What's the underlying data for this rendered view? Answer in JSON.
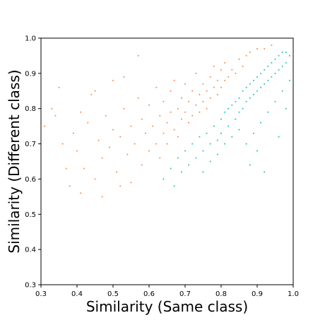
{
  "chart_data": {
    "type": "scatter",
    "title": "",
    "xlabel": "Similarity (Same class)",
    "ylabel": "Similarity (Different class)",
    "xlim": [
      0.3,
      1.0
    ],
    "ylim": [
      0.3,
      1.0
    ],
    "x_ticks": [
      "0.3",
      "0.4",
      "0.5",
      "0.6",
      "0.7",
      "0.8",
      "0.9",
      "1.0"
    ],
    "y_ticks": [
      "0.3",
      "0.4",
      "0.5",
      "0.6",
      "0.7",
      "0.8",
      "0.9",
      "1.0"
    ],
    "grid": false,
    "legend": "none",
    "series": [
      {
        "color": "#ee8a4f",
        "region": "y > x",
        "points": [
          [
            0.31,
            0.75
          ],
          [
            0.33,
            0.8
          ],
          [
            0.35,
            0.86
          ],
          [
            0.36,
            0.7
          ],
          [
            0.38,
            0.58
          ],
          [
            0.39,
            0.73
          ],
          [
            0.4,
            0.68
          ],
          [
            0.41,
            0.79
          ],
          [
            0.42,
            0.63
          ],
          [
            0.43,
            0.76
          ],
          [
            0.44,
            0.84
          ],
          [
            0.45,
            0.6
          ],
          [
            0.46,
            0.71
          ],
          [
            0.47,
            0.66
          ],
          [
            0.48,
            0.78
          ],
          [
            0.49,
            0.69
          ],
          [
            0.5,
            0.88
          ],
          [
            0.5,
            0.74
          ],
          [
            0.51,
            0.62
          ],
          [
            0.52,
            0.72
          ],
          [
            0.53,
            0.8
          ],
          [
            0.54,
            0.67
          ],
          [
            0.55,
            0.75
          ],
          [
            0.55,
            0.59
          ],
          [
            0.56,
            0.7
          ],
          [
            0.57,
            0.83
          ],
          [
            0.58,
            0.64
          ],
          [
            0.58,
            0.77
          ],
          [
            0.59,
            0.73
          ],
          [
            0.6,
            0.68
          ],
          [
            0.6,
            0.81
          ],
          [
            0.61,
            0.75
          ],
          [
            0.62,
            0.7
          ],
          [
            0.62,
            0.86
          ],
          [
            0.63,
            0.78
          ],
          [
            0.63,
            0.66
          ],
          [
            0.64,
            0.73
          ],
          [
            0.64,
            0.82
          ],
          [
            0.65,
            0.76
          ],
          [
            0.65,
            0.7
          ],
          [
            0.66,
            0.79
          ],
          [
            0.66,
            0.85
          ],
          [
            0.67,
            0.74
          ],
          [
            0.67,
            0.88
          ],
          [
            0.68,
            0.8
          ],
          [
            0.68,
            0.72
          ],
          [
            0.69,
            0.77
          ],
          [
            0.69,
            0.83
          ],
          [
            0.7,
            0.79
          ],
          [
            0.7,
            0.87
          ],
          [
            0.71,
            0.76
          ],
          [
            0.71,
            0.82
          ],
          [
            0.72,
            0.85
          ],
          [
            0.72,
            0.78
          ],
          [
            0.73,
            0.9
          ],
          [
            0.73,
            0.81
          ],
          [
            0.74,
            0.84
          ],
          [
            0.74,
            0.79
          ],
          [
            0.75,
            0.87
          ],
          [
            0.75,
            0.82
          ],
          [
            0.76,
            0.85
          ],
          [
            0.76,
            0.8
          ],
          [
            0.77,
            0.89
          ],
          [
            0.77,
            0.83
          ],
          [
            0.78,
            0.86
          ],
          [
            0.78,
            0.92
          ],
          [
            0.79,
            0.84
          ],
          [
            0.79,
            0.88
          ],
          [
            0.8,
            0.86
          ],
          [
            0.8,
            0.91
          ],
          [
            0.81,
            0.88
          ],
          [
            0.81,
            0.93
          ],
          [
            0.82,
            0.89
          ],
          [
            0.83,
            0.91
          ],
          [
            0.84,
            0.9
          ],
          [
            0.85,
            0.94
          ],
          [
            0.86,
            0.92
          ],
          [
            0.87,
            0.95
          ],
          [
            0.88,
            0.96
          ],
          [
            0.9,
            0.97
          ],
          [
            0.92,
            0.97
          ],
          [
            0.94,
            0.98
          ],
          [
            0.57,
            0.95
          ],
          [
            0.53,
            0.89
          ],
          [
            0.45,
            0.85
          ],
          [
            0.37,
            0.63
          ],
          [
            0.41,
            0.56
          ],
          [
            0.34,
            0.78
          ],
          [
            0.47,
            0.55
          ],
          [
            0.52,
            0.58
          ]
        ]
      },
      {
        "color": "#1bbfc0",
        "region": "y < x",
        "points": [
          [
            0.64,
            0.6
          ],
          [
            0.66,
            0.63
          ],
          [
            0.67,
            0.58
          ],
          [
            0.68,
            0.66
          ],
          [
            0.69,
            0.62
          ],
          [
            0.7,
            0.68
          ],
          [
            0.71,
            0.64
          ],
          [
            0.72,
            0.7
          ],
          [
            0.73,
            0.66
          ],
          [
            0.74,
            0.72
          ],
          [
            0.75,
            0.68
          ],
          [
            0.75,
            0.62
          ],
          [
            0.76,
            0.73
          ],
          [
            0.77,
            0.7
          ],
          [
            0.77,
            0.65
          ],
          [
            0.78,
            0.75
          ],
          [
            0.79,
            0.71
          ],
          [
            0.79,
            0.67
          ],
          [
            0.8,
            0.77
          ],
          [
            0.8,
            0.73
          ],
          [
            0.81,
            0.79
          ],
          [
            0.81,
            0.7
          ],
          [
            0.82,
            0.8
          ],
          [
            0.82,
            0.75
          ],
          [
            0.83,
            0.81
          ],
          [
            0.83,
            0.72
          ],
          [
            0.84,
            0.82
          ],
          [
            0.84,
            0.77
          ],
          [
            0.85,
            0.83
          ],
          [
            0.85,
            0.79
          ],
          [
            0.86,
            0.85
          ],
          [
            0.86,
            0.8
          ],
          [
            0.87,
            0.86
          ],
          [
            0.87,
            0.82
          ],
          [
            0.88,
            0.87
          ],
          [
            0.88,
            0.83
          ],
          [
            0.89,
            0.88
          ],
          [
            0.89,
            0.84
          ],
          [
            0.9,
            0.89
          ],
          [
            0.9,
            0.85
          ],
          [
            0.91,
            0.9
          ],
          [
            0.91,
            0.86
          ],
          [
            0.92,
            0.91
          ],
          [
            0.92,
            0.87
          ],
          [
            0.93,
            0.92
          ],
          [
            0.93,
            0.88
          ],
          [
            0.94,
            0.93
          ],
          [
            0.94,
            0.89
          ],
          [
            0.95,
            0.94
          ],
          [
            0.95,
            0.9
          ],
          [
            0.96,
            0.95
          ],
          [
            0.96,
            0.91
          ],
          [
            0.97,
            0.96
          ],
          [
            0.97,
            0.92
          ],
          [
            0.98,
            0.96
          ],
          [
            0.98,
            0.93
          ],
          [
            0.99,
            0.95
          ],
          [
            0.99,
            0.88
          ],
          [
            0.97,
            0.85
          ],
          [
            0.95,
            0.82
          ],
          [
            0.93,
            0.79
          ],
          [
            0.91,
            0.76
          ],
          [
            0.89,
            0.73
          ],
          [
            0.87,
            0.7
          ],
          [
            0.85,
            0.74
          ],
          [
            0.92,
            0.62
          ],
          [
            0.96,
            0.72
          ],
          [
            0.98,
            0.8
          ],
          [
            0.9,
            0.68
          ],
          [
            0.88,
            0.64
          ]
        ]
      }
    ]
  }
}
